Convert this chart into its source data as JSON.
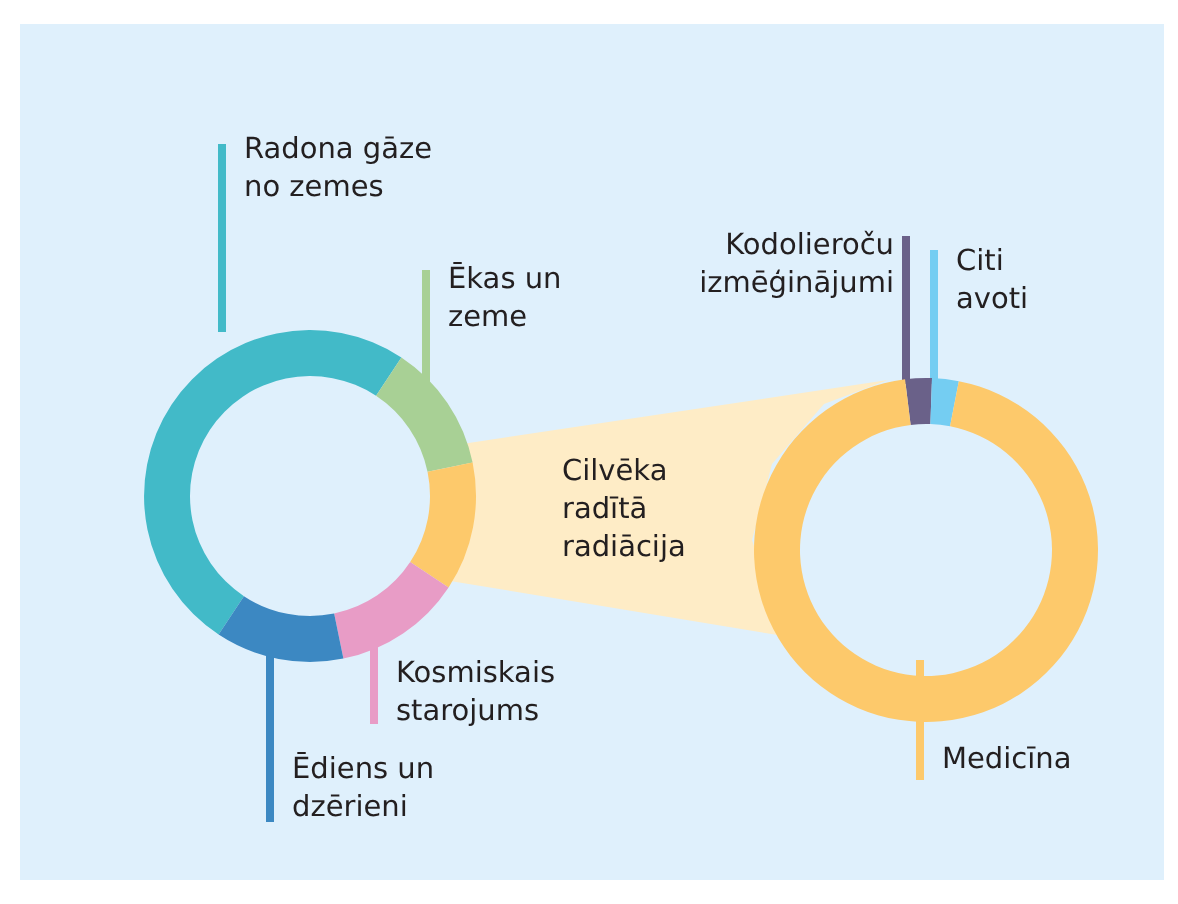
{
  "chart_data": [
    {
      "type": "donut",
      "categories": [
        "Radona gāze no zemes",
        "Ēkas un zeme",
        "Cilvēka radītā radiācija",
        "Kosmiskais starojums",
        "Ēdiens un dzērieni"
      ],
      "values": [
        50,
        12.5,
        12.5,
        12.5,
        12.5
      ],
      "colors": [
        "#42bac8",
        "#a8d095",
        "#fdc96b",
        "#e89cc6",
        "#3c88c2"
      ]
    },
    {
      "type": "donut",
      "categories": [
        "Kodolieroču izmēģinājumi",
        "Citi avoti",
        "Medicīna"
      ],
      "values": [
        2.5,
        2.5,
        95
      ],
      "colors": [
        "#6a6189",
        "#74cdf2",
        "#fdc96b"
      ]
    }
  ]
}
